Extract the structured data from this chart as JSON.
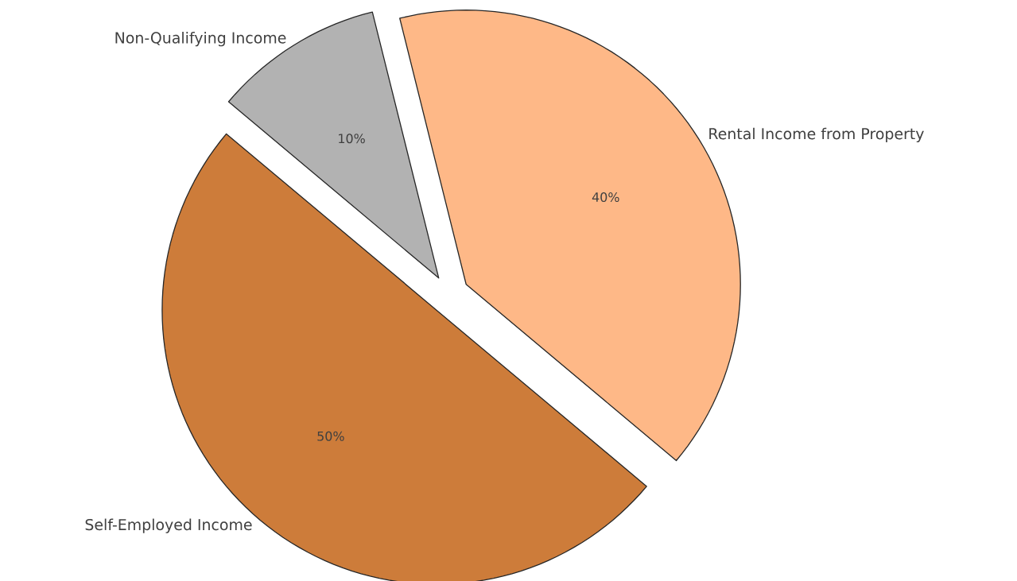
{
  "chart_data": {
    "type": "pie",
    "categories": [
      "Rental Income from Property",
      "Non-Qualifying Income",
      "Self-Employed Income"
    ],
    "values": [
      40,
      10,
      50
    ],
    "colors": [
      "#feb887",
      "#b2b2b2",
      "#cd7c3a"
    ],
    "value_labels": [
      "40%",
      "10%",
      "50%"
    ]
  }
}
